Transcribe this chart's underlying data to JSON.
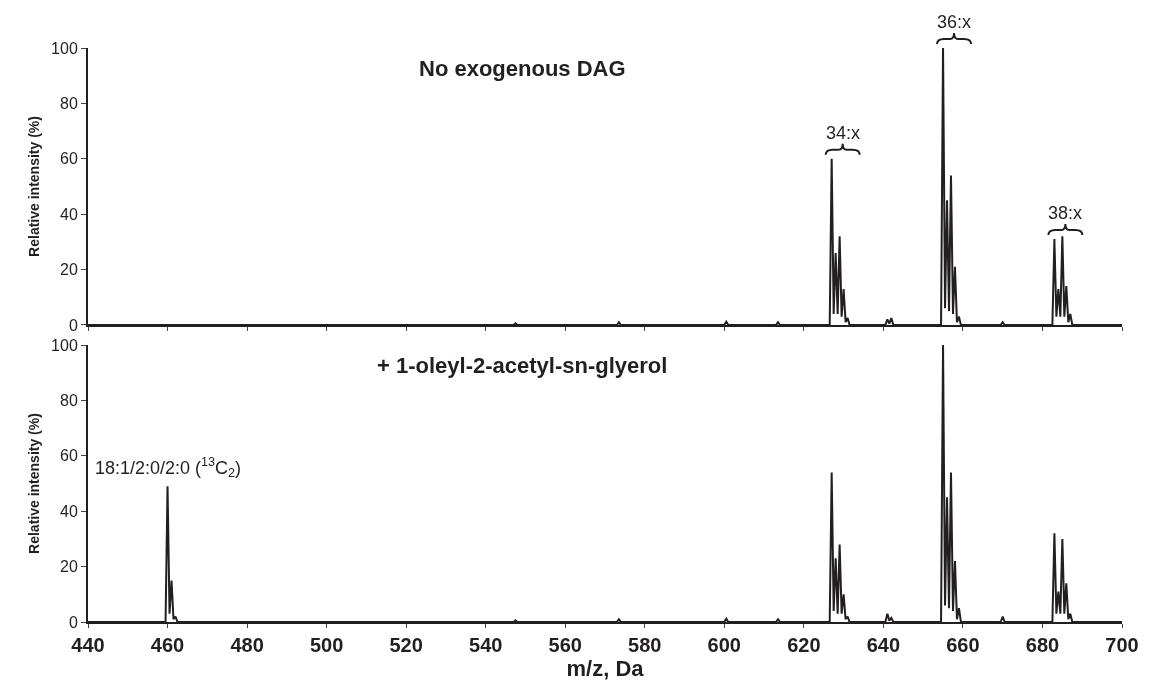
{
  "chart_data": [
    {
      "type": "line",
      "title": "No exogenous DAG",
      "ylabel": "Relative intensity (%)",
      "xlim": [
        440,
        700
      ],
      "xticks": [
        440,
        460,
        480,
        500,
        520,
        540,
        560,
        580,
        600,
        620,
        640,
        660,
        680,
        700
      ],
      "ylim": [
        0,
        100
      ],
      "yticks": [
        0,
        20,
        40,
        60,
        80,
        100
      ],
      "tick_labels": "y",
      "marker": "none",
      "line_style": "solid",
      "series": [
        {
          "color": "#231f20",
          "x": [
            440,
            547,
            547.5,
            548,
            573,
            573.5,
            574,
            600,
            600.5,
            601,
            613,
            613.5,
            614,
            626.5,
            627,
            627.5,
            628,
            628.5,
            629,
            629.5,
            630,
            630.5,
            631,
            631.5,
            640.5,
            641,
            641.5,
            642,
            642.5,
            654.5,
            655,
            655.5,
            656,
            656.5,
            657,
            657.5,
            658,
            658.5,
            659,
            659.5,
            669.5,
            670,
            670.5,
            682.5,
            683,
            683.5,
            684,
            684.5,
            685,
            685.5,
            686,
            686.5,
            687,
            687.5,
            700
          ],
          "values": [
            0,
            0,
            0.6,
            0,
            0,
            1,
            0,
            0,
            1.2,
            0,
            0,
            1,
            0,
            0,
            60,
            4,
            26,
            4,
            32,
            3,
            13,
            1,
            2.5,
            0,
            0,
            2,
            0.5,
            2.5,
            0,
            0,
            100,
            6,
            45,
            5,
            54,
            4,
            21,
            1,
            3,
            0,
            0,
            1,
            0,
            0,
            31,
            3,
            13,
            3,
            32,
            3,
            14,
            1,
            4,
            0,
            0
          ]
        }
      ],
      "annotations": [
        {
          "text": "34:x",
          "x": 627,
          "y": 60
        },
        {
          "text": "36:x",
          "x": 655,
          "y": 100
        },
        {
          "text": "38:x",
          "x": 683,
          "y": 31
        }
      ]
    },
    {
      "type": "line",
      "title": "+ 1-oleyl-2-acetyl-sn-glyerol",
      "xlabel": "m/z, Da",
      "ylabel": "Relative intensity (%)",
      "xlim": [
        440,
        700
      ],
      "xticks": [
        440,
        460,
        480,
        500,
        520,
        540,
        560,
        580,
        600,
        620,
        640,
        660,
        680,
        700
      ],
      "ylim": [
        0,
        100
      ],
      "yticks": [
        0,
        20,
        40,
        60,
        80,
        100
      ],
      "marker": "none",
      "line_style": "solid",
      "series": [
        {
          "color": "#231f20",
          "x": [
            440,
            459.5,
            460,
            460.5,
            461,
            461.5,
            462,
            462.5,
            547,
            547.5,
            548,
            573,
            573.5,
            574,
            600,
            600.5,
            601,
            613,
            613.5,
            614,
            626.5,
            627,
            627.5,
            628,
            628.5,
            629,
            629.5,
            630,
            630.5,
            631,
            631.5,
            640.5,
            641,
            641.5,
            642,
            642.5,
            654.5,
            655,
            655.5,
            656,
            656.5,
            657,
            657.5,
            658,
            658.5,
            659,
            659.5,
            669.5,
            670,
            670.5,
            682.5,
            683,
            683.5,
            684,
            684.5,
            685,
            685.5,
            686,
            686.5,
            687,
            687.5,
            700
          ],
          "values": [
            0,
            0,
            49,
            3,
            15,
            1,
            2,
            0,
            0,
            0.6,
            0,
            0,
            1,
            0,
            0,
            1.2,
            0,
            0,
            1,
            0,
            0,
            54,
            4,
            23,
            3,
            28,
            3,
            10,
            1,
            2,
            0,
            0,
            3,
            0.5,
            1.5,
            0,
            0,
            100,
            6,
            45,
            5,
            54,
            4,
            22,
            1,
            5,
            0,
            0,
            2,
            0,
            0,
            32,
            3,
            11,
            3,
            30,
            3,
            14,
            1,
            3,
            0,
            0
          ]
        }
      ],
      "annotations": [
        {
          "text": "18:1/2:0/2:0 ($^{13}$C$_{2}$)",
          "x": 460,
          "y": 49
        }
      ]
    }
  ]
}
